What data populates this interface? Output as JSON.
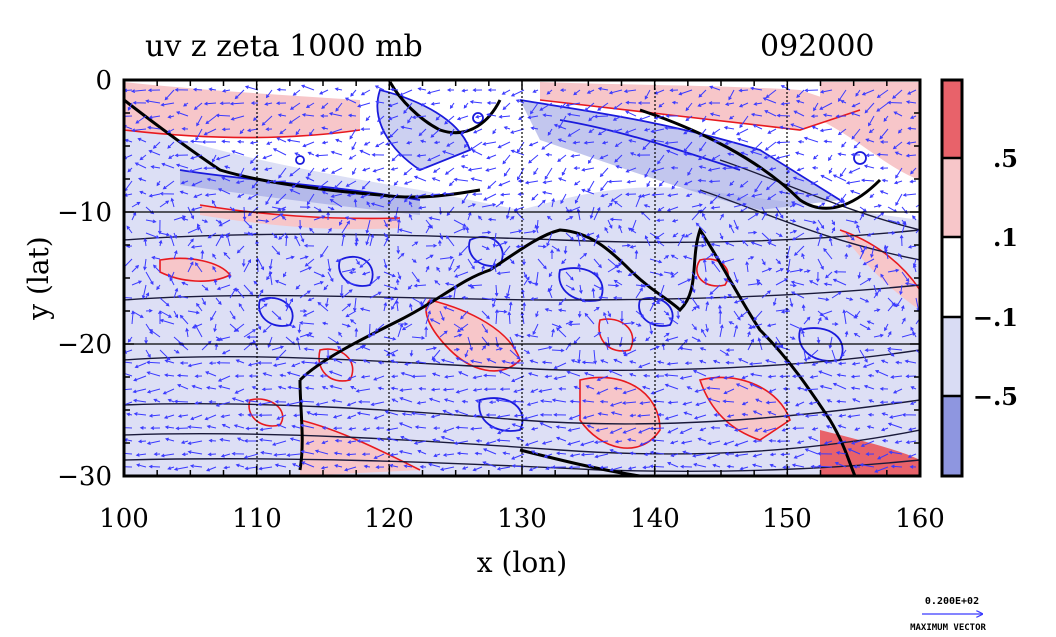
{
  "title_left": "uv z zeta 1000 mb",
  "title_right": "092000",
  "x_axis": {
    "label": "x (lon)",
    "ticks": [
      100,
      110,
      120,
      130,
      140,
      150,
      160
    ],
    "tick_labels": [
      "100",
      "110",
      "120",
      "130",
      "140",
      "150",
      "160"
    ],
    "range": [
      100,
      160
    ]
  },
  "y_axis": {
    "label": "y (lat)",
    "ticks": [
      0,
      -10,
      -20,
      -30
    ],
    "tick_labels": [
      "0",
      "−10",
      "−20",
      "−30"
    ],
    "range": [
      -30,
      0
    ]
  },
  "colorbar": {
    "labels": [
      ".5",
      ".1",
      "−.1",
      "−.5"
    ],
    "colors": [
      "#e8626a",
      "#f7c6c9",
      "#ffffff",
      "#d9dcf4",
      "#8e96e0"
    ]
  },
  "vector_legend": {
    "magnitude": "0.200E+02",
    "caption": "MAXIMUM VECTOR"
  },
  "colors": {
    "positive_fill": "#f7c6c9",
    "negative_fill": "#d9dcf4",
    "positive_contour": "#e8191e",
    "negative_contour": "#1a1adc",
    "vectors": "#3a3aff",
    "coast": "#000000"
  }
}
